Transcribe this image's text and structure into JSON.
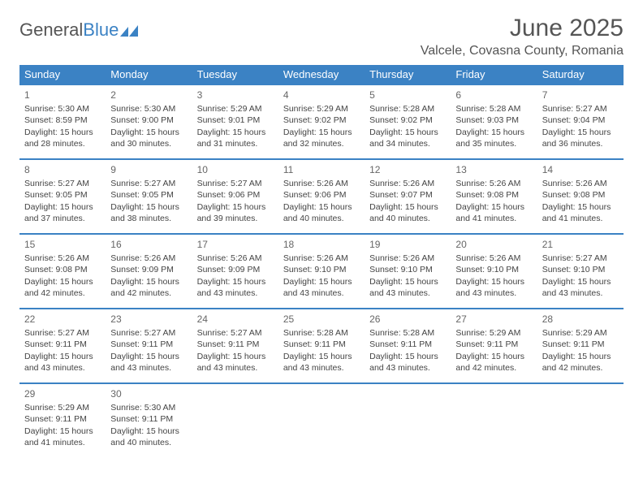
{
  "logo": {
    "part1": "General",
    "part2": "Blue"
  },
  "title": "June 2025",
  "location": "Valcele, Covasna County, Romania",
  "colors": {
    "header_bg": "#3b82c4",
    "header_text": "#ffffff",
    "border": "#3b82c4",
    "text": "#444444",
    "title_text": "#555555"
  },
  "dayHeaders": [
    "Sunday",
    "Monday",
    "Tuesday",
    "Wednesday",
    "Thursday",
    "Friday",
    "Saturday"
  ],
  "weeks": [
    [
      {
        "n": "1",
        "sr": "5:30 AM",
        "ss": "8:59 PM",
        "dl": "15 hours and 28 minutes."
      },
      {
        "n": "2",
        "sr": "5:30 AM",
        "ss": "9:00 PM",
        "dl": "15 hours and 30 minutes."
      },
      {
        "n": "3",
        "sr": "5:29 AM",
        "ss": "9:01 PM",
        "dl": "15 hours and 31 minutes."
      },
      {
        "n": "4",
        "sr": "5:29 AM",
        "ss": "9:02 PM",
        "dl": "15 hours and 32 minutes."
      },
      {
        "n": "5",
        "sr": "5:28 AM",
        "ss": "9:02 PM",
        "dl": "15 hours and 34 minutes."
      },
      {
        "n": "6",
        "sr": "5:28 AM",
        "ss": "9:03 PM",
        "dl": "15 hours and 35 minutes."
      },
      {
        "n": "7",
        "sr": "5:27 AM",
        "ss": "9:04 PM",
        "dl": "15 hours and 36 minutes."
      }
    ],
    [
      {
        "n": "8",
        "sr": "5:27 AM",
        "ss": "9:05 PM",
        "dl": "15 hours and 37 minutes."
      },
      {
        "n": "9",
        "sr": "5:27 AM",
        "ss": "9:05 PM",
        "dl": "15 hours and 38 minutes."
      },
      {
        "n": "10",
        "sr": "5:27 AM",
        "ss": "9:06 PM",
        "dl": "15 hours and 39 minutes."
      },
      {
        "n": "11",
        "sr": "5:26 AM",
        "ss": "9:06 PM",
        "dl": "15 hours and 40 minutes."
      },
      {
        "n": "12",
        "sr": "5:26 AM",
        "ss": "9:07 PM",
        "dl": "15 hours and 40 minutes."
      },
      {
        "n": "13",
        "sr": "5:26 AM",
        "ss": "9:08 PM",
        "dl": "15 hours and 41 minutes."
      },
      {
        "n": "14",
        "sr": "5:26 AM",
        "ss": "9:08 PM",
        "dl": "15 hours and 41 minutes."
      }
    ],
    [
      {
        "n": "15",
        "sr": "5:26 AM",
        "ss": "9:08 PM",
        "dl": "15 hours and 42 minutes."
      },
      {
        "n": "16",
        "sr": "5:26 AM",
        "ss": "9:09 PM",
        "dl": "15 hours and 42 minutes."
      },
      {
        "n": "17",
        "sr": "5:26 AM",
        "ss": "9:09 PM",
        "dl": "15 hours and 43 minutes."
      },
      {
        "n": "18",
        "sr": "5:26 AM",
        "ss": "9:10 PM",
        "dl": "15 hours and 43 minutes."
      },
      {
        "n": "19",
        "sr": "5:26 AM",
        "ss": "9:10 PM",
        "dl": "15 hours and 43 minutes."
      },
      {
        "n": "20",
        "sr": "5:26 AM",
        "ss": "9:10 PM",
        "dl": "15 hours and 43 minutes."
      },
      {
        "n": "21",
        "sr": "5:27 AM",
        "ss": "9:10 PM",
        "dl": "15 hours and 43 minutes."
      }
    ],
    [
      {
        "n": "22",
        "sr": "5:27 AM",
        "ss": "9:11 PM",
        "dl": "15 hours and 43 minutes."
      },
      {
        "n": "23",
        "sr": "5:27 AM",
        "ss": "9:11 PM",
        "dl": "15 hours and 43 minutes."
      },
      {
        "n": "24",
        "sr": "5:27 AM",
        "ss": "9:11 PM",
        "dl": "15 hours and 43 minutes."
      },
      {
        "n": "25",
        "sr": "5:28 AM",
        "ss": "9:11 PM",
        "dl": "15 hours and 43 minutes."
      },
      {
        "n": "26",
        "sr": "5:28 AM",
        "ss": "9:11 PM",
        "dl": "15 hours and 43 minutes."
      },
      {
        "n": "27",
        "sr": "5:29 AM",
        "ss": "9:11 PM",
        "dl": "15 hours and 42 minutes."
      },
      {
        "n": "28",
        "sr": "5:29 AM",
        "ss": "9:11 PM",
        "dl": "15 hours and 42 minutes."
      }
    ],
    [
      {
        "n": "29",
        "sr": "5:29 AM",
        "ss": "9:11 PM",
        "dl": "15 hours and 41 minutes."
      },
      {
        "n": "30",
        "sr": "5:30 AM",
        "ss": "9:11 PM",
        "dl": "15 hours and 40 minutes."
      },
      null,
      null,
      null,
      null,
      null
    ]
  ],
  "labels": {
    "sunrise": "Sunrise: ",
    "sunset": "Sunset: ",
    "daylight": "Daylight: "
  }
}
